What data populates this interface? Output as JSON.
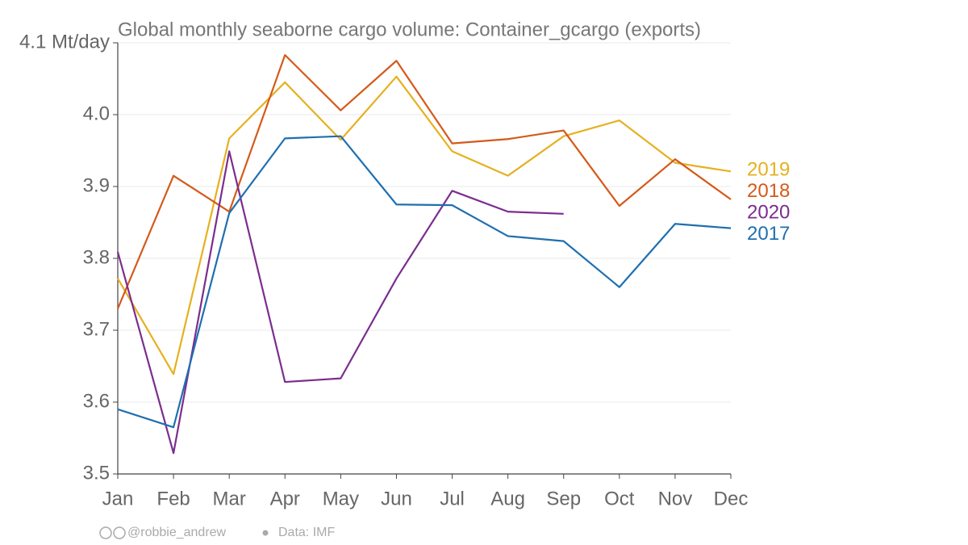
{
  "chart_data": {
    "type": "line",
    "title": "Global monthly seaborne cargo volume: Container_gcargo (exports)",
    "categories": [
      "Jan",
      "Feb",
      "Mar",
      "Apr",
      "May",
      "Jun",
      "Jul",
      "Aug",
      "Sep",
      "Oct",
      "Nov",
      "Dec"
    ],
    "series": [
      {
        "name": "2019",
        "color": "#e6b020",
        "values": [
          3.772,
          3.639,
          3.967,
          4.045,
          3.965,
          4.053,
          3.949,
          3.915,
          3.97,
          3.992,
          3.933,
          3.921
        ]
      },
      {
        "name": "2018",
        "color": "#d45a1a",
        "values": [
          3.73,
          3.915,
          3.865,
          4.083,
          4.006,
          4.075,
          3.96,
          3.966,
          3.978,
          3.873,
          3.938,
          3.882
        ]
      },
      {
        "name": "2020",
        "color": "#7b2d8e",
        "values": [
          3.809,
          3.529,
          3.949,
          3.628,
          3.633,
          3.772,
          3.894,
          3.865,
          3.862,
          null,
          null,
          null
        ]
      },
      {
        "name": "2017",
        "color": "#1f6fb0",
        "values": [
          3.59,
          3.565,
          3.863,
          3.967,
          3.97,
          3.875,
          3.874,
          3.831,
          3.824,
          3.76,
          3.848,
          3.842
        ]
      }
    ],
    "ylim": [
      3.5,
      4.1
    ],
    "yticks": [
      3.5,
      3.6,
      3.7,
      3.8,
      3.9,
      {
        "value": 4,
        "label": "4.0"
      },
      {
        "value": 4.1,
        "label": "4.1 Mt/day"
      }
    ],
    "grid": true,
    "credit": "@robbie_andrew",
    "source": "Data: IMF"
  }
}
